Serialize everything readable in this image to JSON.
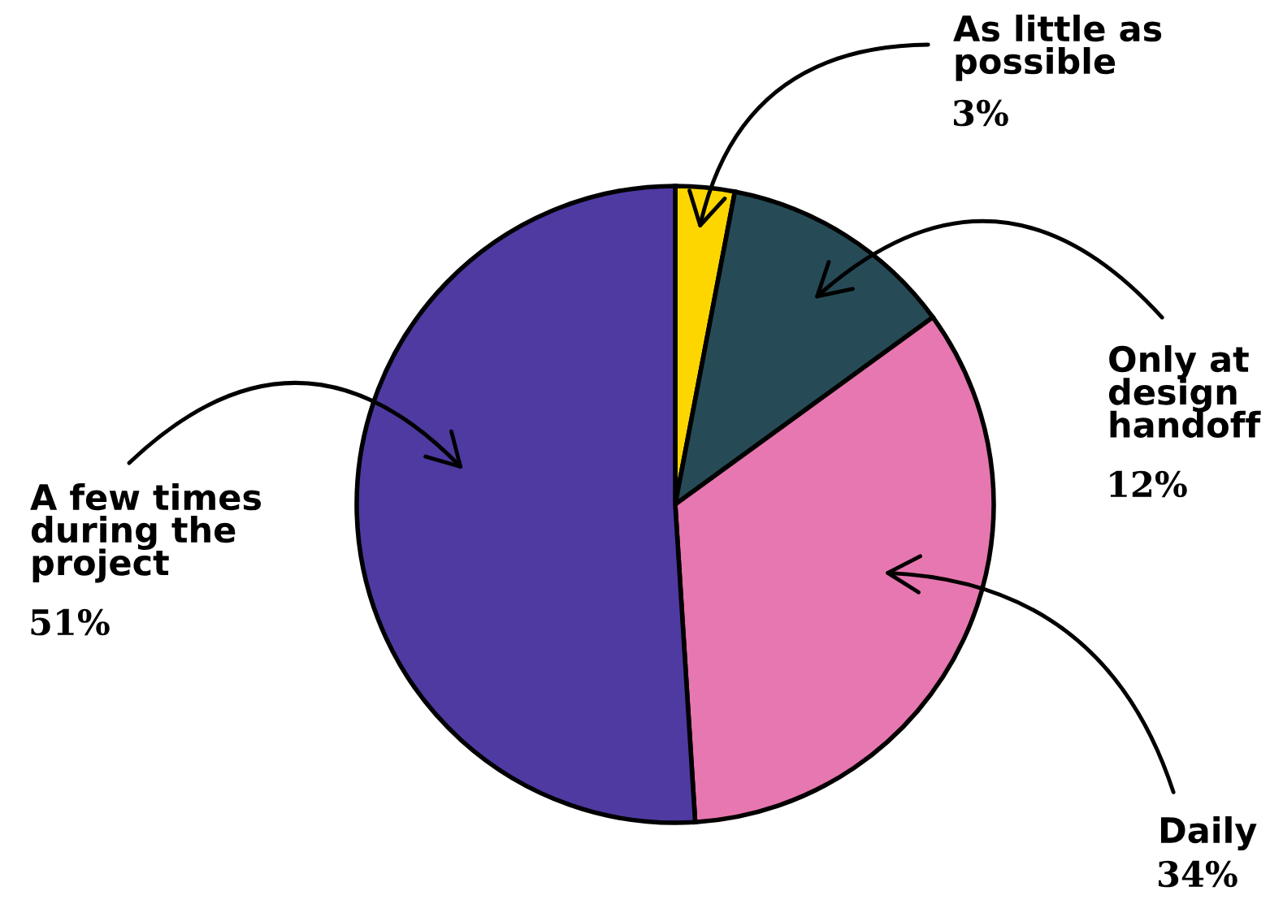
{
  "chart_data": {
    "type": "pie",
    "categories": [
      "As little as possible",
      "Only at design handoff",
      "Daily",
      "A few times during the project"
    ],
    "values": [
      3,
      12,
      34,
      51
    ],
    "colors": [
      "#fdd600",
      "#264b57",
      "#e777b0",
      "#4f3aa2"
    ],
    "value_labels": [
      "3%",
      "12%",
      "34%",
      "51%"
    ]
  }
}
